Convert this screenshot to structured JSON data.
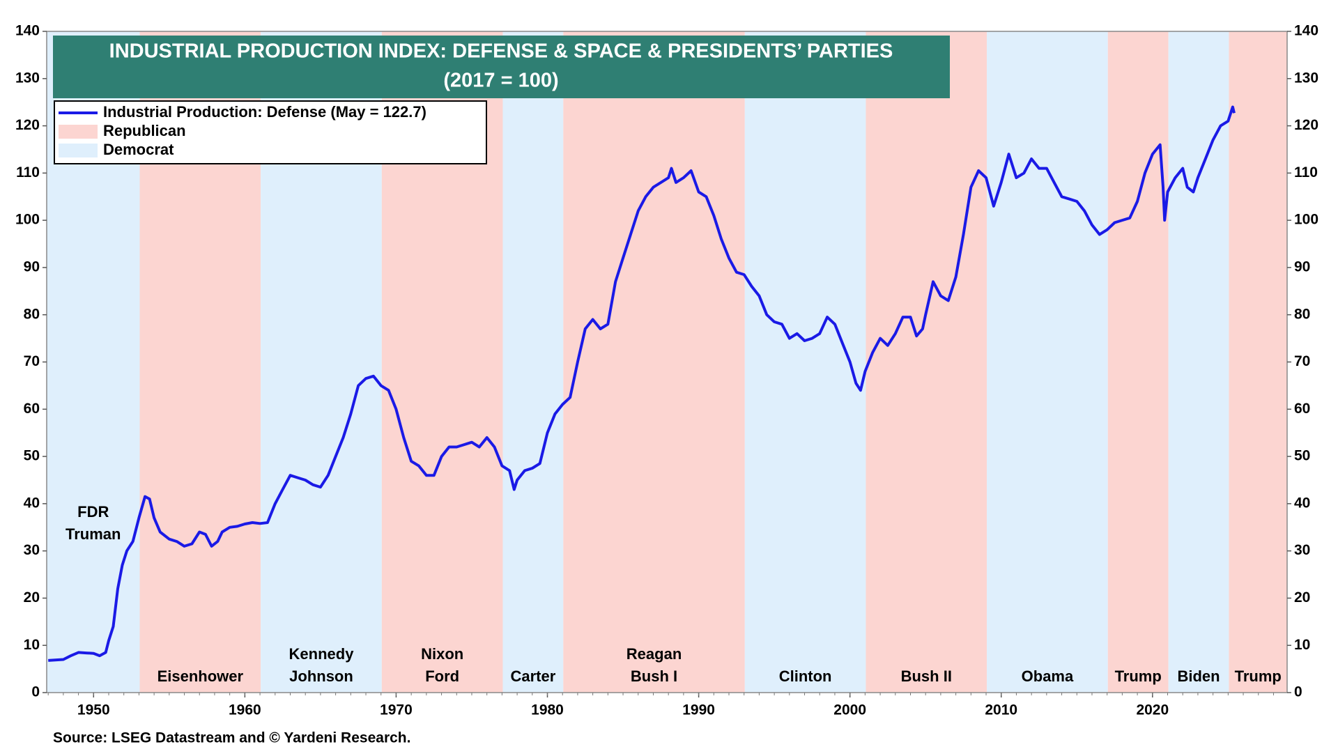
{
  "chart_data": {
    "type": "line",
    "title": [
      "INDUSTRIAL PRODUCTION INDEX: DEFENSE & SPACE & PRESIDENTS’ PARTIES",
      "(2017 = 100)"
    ],
    "source": "Source: LSEG Datastream and © Yardeni Research.",
    "title_color": "#2f7f73",
    "xlim": [
      1946.9,
      2028.9
    ],
    "xticks": [
      1950,
      1960,
      1970,
      1980,
      1990,
      2000,
      2010,
      2020
    ],
    "ylim": [
      0,
      140
    ],
    "yticks": [
      0,
      10,
      20,
      30,
      40,
      50,
      60,
      70,
      80,
      90,
      100,
      110,
      120,
      130,
      140
    ],
    "y2lim": [
      0,
      140
    ],
    "y2ticks": [
      0,
      10,
      20,
      30,
      40,
      50,
      60,
      70,
      80,
      90,
      100,
      110,
      120,
      130,
      140
    ],
    "legend": "upper left",
    "parties": [
      {
        "name": "Republican",
        "color": "#fcd5d1"
      },
      {
        "name": "Democrat",
        "color": "#dfeffc"
      }
    ],
    "periods": [
      {
        "label": [
          "FDR",
          "Truman"
        ],
        "party": "Democrat",
        "start": 1946.9,
        "end": 1953.05
      },
      {
        "label": [
          "Eisenhower"
        ],
        "party": "Republican",
        "start": 1953.05,
        "end": 1961.05
      },
      {
        "label": [
          "Kennedy",
          "Johnson"
        ],
        "party": "Democrat",
        "start": 1961.05,
        "end": 1969.05
      },
      {
        "label": [
          "Nixon",
          "Ford"
        ],
        "party": "Republican",
        "start": 1969.05,
        "end": 1977.05
      },
      {
        "label": [
          "Carter"
        ],
        "party": "Democrat",
        "start": 1977.05,
        "end": 1981.05
      },
      {
        "label": [
          "Reagan",
          "Bush I"
        ],
        "party": "Republican",
        "start": 1981.05,
        "end": 1993.05
      },
      {
        "label": [
          "Clinton"
        ],
        "party": "Democrat",
        "start": 1993.05,
        "end": 2001.05
      },
      {
        "label": [
          "Bush II"
        ],
        "party": "Republican",
        "start": 2001.05,
        "end": 2009.05
      },
      {
        "label": [
          "Obama"
        ],
        "party": "Democrat",
        "start": 2009.05,
        "end": 2017.05
      },
      {
        "label": [
          "Trump"
        ],
        "party": "Republican",
        "start": 2017.05,
        "end": 2021.05
      },
      {
        "label": [
          "Biden"
        ],
        "party": "Democrat",
        "start": 2021.05,
        "end": 2025.05
      },
      {
        "label": [
          "Trump"
        ],
        "party": "Republican",
        "start": 2025.05,
        "end": 2028.9
      }
    ],
    "x": [
      1947.0,
      1948,
      1948.5,
      1949,
      1949.5,
      1950,
      1950.4,
      1950.8,
      1951.0,
      1951.3,
      1951.6,
      1951.9,
      1952.2,
      1952.6,
      1953.0,
      1953.4,
      1953.7,
      1954.0,
      1954.4,
      1955,
      1955.5,
      1956,
      1956.5,
      1957,
      1957.4,
      1957.8,
      1958.2,
      1958.5,
      1959,
      1959.5,
      1960,
      1960.5,
      1961,
      1961.5,
      1962,
      1962.5,
      1963,
      1963.5,
      1964,
      1964.5,
      1965,
      1965.5,
      1966,
      1966.5,
      1967,
      1967.5,
      1968,
      1968.5,
      1969,
      1969.5,
      1970,
      1970.5,
      1971,
      1971.5,
      1972,
      1972.5,
      1973,
      1973.5,
      1974,
      1974.5,
      1975,
      1975.5,
      1976,
      1976.5,
      1977,
      1977.5,
      1977.8,
      1978,
      1978.5,
      1979,
      1979.5,
      1980,
      1980.5,
      1981,
      1981.5,
      1982,
      1982.5,
      1983,
      1983.5,
      1984,
      1984.5,
      1985,
      1985.5,
      1986,
      1986.5,
      1987,
      1987.5,
      1988,
      1988.2,
      1988.5,
      1989,
      1989.5,
      1990,
      1990.5,
      1991,
      1991.5,
      1992,
      1992.5,
      1993,
      1993.5,
      1994,
      1994.5,
      1995,
      1995.5,
      1996,
      1996.5,
      1997,
      1997.5,
      1998,
      1998.5,
      1999,
      1999.5,
      2000,
      2000.4,
      2000.7,
      2001,
      2001.5,
      2002,
      2002.5,
      2003,
      2003.5,
      2004,
      2004.4,
      2004.8,
      2005,
      2005.5,
      2006,
      2006.5,
      2007,
      2007.5,
      2008,
      2008.5,
      2009,
      2009.5,
      2010,
      2010.5,
      2011,
      2011.5,
      2012,
      2012.5,
      2013,
      2013.5,
      2014,
      2014.5,
      2015,
      2015.5,
      2016,
      2016.5,
      2017,
      2017.5,
      2018,
      2018.5,
      2019,
      2019.5,
      2020,
      2020.5,
      2020.7,
      2020.8,
      2021,
      2021.5,
      2022,
      2022.3,
      2022.7,
      2023,
      2023.5,
      2024,
      2024.5,
      2025,
      2025.3,
      2025.4
    ],
    "series": [
      {
        "name": "Industrial Production: Defense (May = 122.7)",
        "color": "#1a1ae6",
        "values": [
          6.8,
          7.0,
          7.8,
          8.5,
          8.4,
          8.3,
          7.8,
          8.5,
          11,
          14,
          22,
          27,
          30,
          32,
          37,
          41.5,
          41,
          37,
          34,
          32.5,
          32,
          31,
          31.5,
          34,
          33.5,
          31,
          32,
          34,
          35,
          35.2,
          35.7,
          36,
          35.8,
          36,
          40,
          43,
          46,
          45.5,
          45,
          44,
          43.5,
          46,
          50,
          54,
          59,
          65,
          66.5,
          67,
          65,
          64,
          60,
          54,
          49,
          48,
          46,
          46,
          50,
          52,
          52,
          52.5,
          53,
          52,
          54,
          52,
          48,
          47,
          43,
          45,
          47,
          47.5,
          48.5,
          55,
          59,
          61,
          62.5,
          70,
          77,
          79,
          77,
          78,
          87,
          92,
          97,
          102,
          105,
          107,
          108,
          109,
          111,
          108,
          109,
          110.5,
          106,
          105,
          101,
          96,
          92,
          89,
          88.5,
          86,
          84,
          80,
          78.5,
          78,
          75,
          76,
          74.5,
          75,
          76,
          79.5,
          78,
          74,
          70,
          65.5,
          64,
          68,
          72,
          75,
          73.5,
          76,
          79.5,
          79.5,
          75.5,
          77,
          80,
          87,
          84,
          83,
          88,
          97,
          107,
          110.5,
          109,
          103,
          108,
          114,
          109,
          110,
          113,
          111,
          111,
          108,
          105,
          104.5,
          104,
          102,
          99,
          97,
          98,
          99.5,
          100,
          100.5,
          104,
          110,
          114,
          116,
          107,
          100,
          106,
          109,
          111,
          107,
          106,
          109,
          113,
          117,
          120,
          121,
          124,
          122.7
        ]
      }
    ]
  }
}
